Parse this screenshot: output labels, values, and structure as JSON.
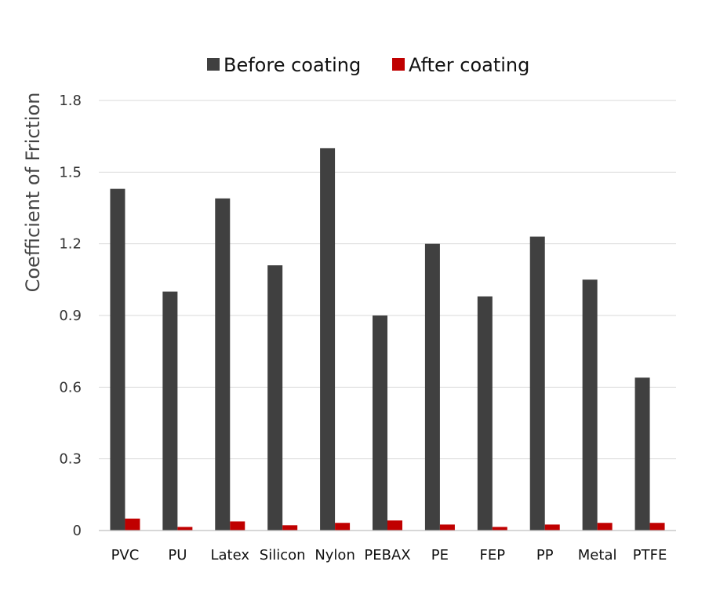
{
  "chart_data": {
    "type": "bar",
    "title": "",
    "xlabel": "",
    "ylabel": "Coefficient of Friction",
    "ylim": [
      0,
      1.8
    ],
    "yticks": [
      "0",
      "0.3",
      "0.6",
      "0.9",
      "1.2",
      "1.5",
      "1.8"
    ],
    "grid": true,
    "legend_position": "top",
    "categories": [
      "PVC",
      "PU",
      "Latex",
      "Silicon",
      "Nylon",
      "PEBAX",
      "PE",
      "FEP",
      "PP",
      "Metal",
      "PTFE"
    ],
    "series": [
      {
        "name": "Before coating",
        "color": "#404040",
        "values": [
          1.43,
          1.0,
          1.39,
          1.11,
          1.6,
          0.9,
          1.2,
          0.98,
          1.23,
          1.05,
          0.64
        ]
      },
      {
        "name": "After coating",
        "color": "#c00000",
        "values": [
          0.05,
          0.015,
          0.038,
          0.022,
          0.032,
          0.042,
          0.025,
          0.015,
          0.025,
          0.032,
          0.032
        ]
      }
    ]
  }
}
